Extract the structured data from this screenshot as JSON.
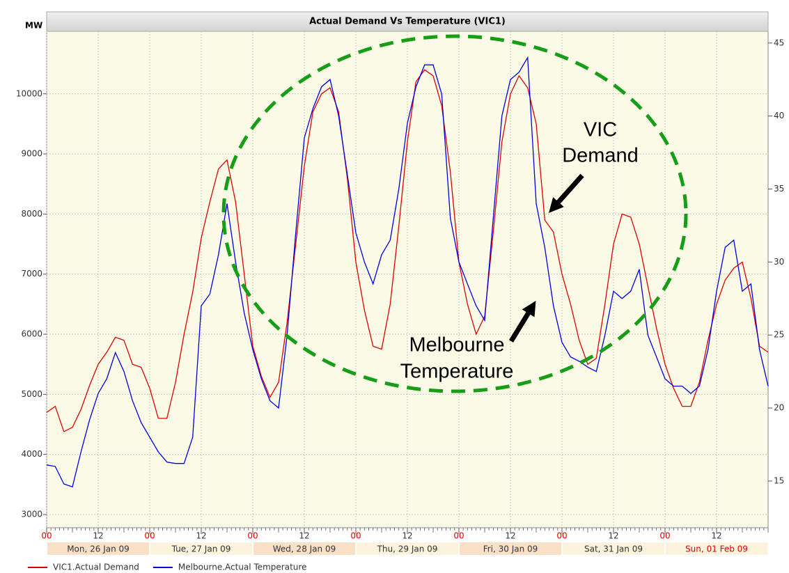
{
  "chart_data": {
    "type": "line",
    "title": "Actual Demand Vs Temperature (VIC1)",
    "y_label": "MW",
    "x": [
      0,
      2,
      4,
      6,
      8,
      10,
      12,
      14,
      16,
      18,
      20,
      22,
      24,
      26,
      28,
      30,
      32,
      34,
      36,
      38,
      40,
      42,
      44,
      46,
      48,
      50,
      52,
      54,
      56,
      58,
      60,
      62,
      64,
      66,
      68,
      70,
      72,
      74,
      76,
      78,
      80,
      82,
      84,
      86,
      88,
      90,
      92,
      94,
      96,
      98,
      100,
      102,
      104,
      106,
      108,
      110,
      112,
      114,
      116,
      118,
      120,
      122,
      124,
      126,
      128,
      130,
      132,
      134,
      136,
      138,
      140,
      142,
      144,
      146,
      148,
      150,
      152,
      154,
      156,
      158,
      160,
      162,
      164,
      166,
      168
    ],
    "xlim": [
      0,
      168
    ],
    "xticks": [
      {
        "value": 0,
        "label": "00"
      },
      {
        "value": 12,
        "label": "12"
      },
      {
        "value": 24,
        "label": "00"
      },
      {
        "value": 36,
        "label": "12"
      },
      {
        "value": 48,
        "label": "00"
      },
      {
        "value": 60,
        "label": "12"
      },
      {
        "value": 72,
        "label": "00"
      },
      {
        "value": 84,
        "label": "12"
      },
      {
        "value": 96,
        "label": "00"
      },
      {
        "value": 108,
        "label": "12"
      },
      {
        "value": 120,
        "label": "00"
      },
      {
        "value": 132,
        "label": "12"
      },
      {
        "value": 144,
        "label": "00"
      },
      {
        "value": 156,
        "label": "12"
      }
    ],
    "days": [
      {
        "label": "Mon, 26 Jan 09",
        "color": "#fbe0c8"
      },
      {
        "label": "Tue, 27 Jan 09",
        "color": "#fbf3dc"
      },
      {
        "label": "Wed, 28 Jan 09",
        "color": "#fbe0c8"
      },
      {
        "label": "Thu, 29 Jan 09",
        "color": "#fbf3dc"
      },
      {
        "label": "Fri, 30 Jan 09",
        "color": "#fbe0c8"
      },
      {
        "label": "Sat, 31 Jan 09",
        "color": "#fbf3dc"
      },
      {
        "label": "Sun, 01 Feb 09",
        "color": "#fbf3dc",
        "text_color": "#e00000"
      }
    ],
    "ylim": [
      2780,
      11040
    ],
    "yticks": [
      3000,
      4000,
      5000,
      6000,
      7000,
      8000,
      9000,
      10000
    ],
    "y2lim": [
      11.8,
      45.8
    ],
    "y2ticks": [
      15,
      20,
      25,
      30,
      35,
      40,
      45
    ],
    "grid": true,
    "series": [
      {
        "name": "VIC1.Actual Demand",
        "color": "#e00000",
        "values": [
          4700,
          4800,
          4380,
          4450,
          4750,
          5150,
          5500,
          5700,
          5950,
          5900,
          5500,
          5450,
          5100,
          4600,
          4600,
          5200,
          6000,
          6700,
          7600,
          8200,
          8750,
          8900,
          8200,
          7000,
          5800,
          5300,
          4950,
          5200,
          6200,
          7500,
          8800,
          9700,
          10000,
          10100,
          9700,
          8600,
          7200,
          6400,
          5800,
          5750,
          6500,
          7800,
          9200,
          10200,
          10400,
          10300,
          9800,
          8700,
          7200,
          6500,
          6000,
          6300,
          7700,
          9200,
          10000,
          10300,
          10100,
          9500,
          7900,
          7700,
          7000,
          6500,
          5900,
          5500,
          5600,
          6500,
          7500,
          8000,
          7950,
          7500,
          6800,
          6100,
          5500,
          5100,
          4800,
          4800,
          5200,
          5900,
          6500,
          6900,
          7100,
          7200,
          6600,
          5800,
          5700
        ]
      },
      {
        "name": "Melbourne.Actual Temperature",
        "color": "#0000e0",
        "axis": "y2",
        "values": [
          16.1,
          16.0,
          14.8,
          14.6,
          17.0,
          19.2,
          21.0,
          22.0,
          23.8,
          22.5,
          20.5,
          19.0,
          18.0,
          17.0,
          16.3,
          16.2,
          16.2,
          18.0,
          27.0,
          27.8,
          30.5,
          34.0,
          30.0,
          26.5,
          24.0,
          22.0,
          20.5,
          20.0,
          25.0,
          32.0,
          38.5,
          40.5,
          42.0,
          42.5,
          40.0,
          36.0,
          32.0,
          30.0,
          28.5,
          30.5,
          31.5,
          35.0,
          39.5,
          42.0,
          43.5,
          43.5,
          41.5,
          33.0,
          30.0,
          28.5,
          27.0,
          26.0,
          33.0,
          40.0,
          42.5,
          43.0,
          44.0,
          34.0,
          31.0,
          27.0,
          24.5,
          23.5,
          23.2,
          22.8,
          22.5,
          25.0,
          28.0,
          27.5,
          28.0,
          29.5,
          25.0,
          23.5,
          22.0,
          21.5,
          21.5,
          21.0,
          21.5,
          24.0,
          28.0,
          31.0,
          31.5,
          28.0,
          28.5,
          24.0,
          21.5
        ]
      }
    ],
    "annotations": [
      {
        "lines": [
          "VIC",
          "Demand"
        ]
      },
      {
        "lines": [
          "Melbourne",
          "Temperature"
        ]
      }
    ]
  }
}
